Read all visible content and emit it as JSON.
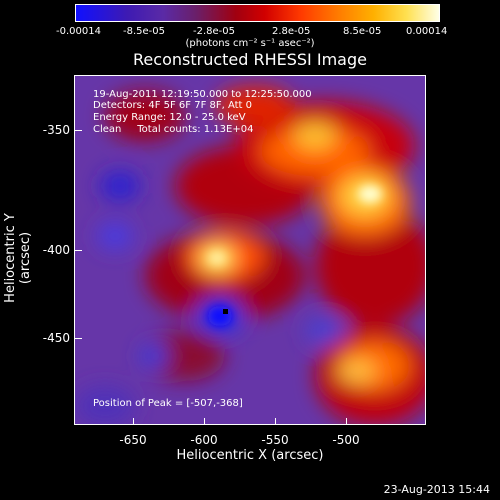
{
  "colorbar": {
    "labels": [
      "-0.00014",
      "-8.5e-05",
      "-2.8e-05",
      "2.8e-05",
      "8.5e-05",
      "0.00014"
    ],
    "units": "(photons cm⁻² s⁻¹ asec⁻²)"
  },
  "title": "Reconstructed RHESSI Image",
  "info": {
    "line1": "19-Aug-2011 12:19:50.000 to 12:25:50.000",
    "line2": "Detectors: 4F 5F 6F 7F 8F, Att 0",
    "line3": "Energy Range: 12.0 - 25.0 keV",
    "line4": "Clean     Total counts: 1.13E+04"
  },
  "peak": "Position of Peak = [-507,-368]",
  "axes": {
    "xlabel": "Heliocentric X (arcsec)",
    "ylabel": "Heliocentric Y (arcsec)",
    "xticks": [
      "-650",
      "-600",
      "-550",
      "-500"
    ],
    "yticks": [
      "-350",
      "-400",
      "-450"
    ]
  },
  "datestamp": "23-Aug-2013 15:44"
}
